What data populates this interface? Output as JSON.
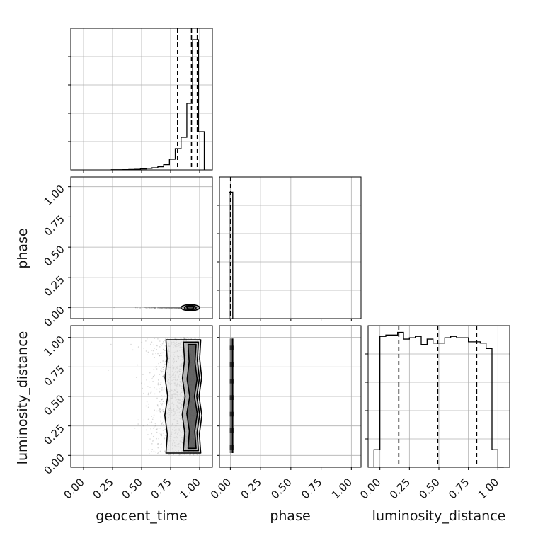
{
  "chart_data": {
    "type": "corner",
    "title": "",
    "parameters": [
      "geocent_time",
      "phase",
      "luminosity_distance"
    ],
    "grid": true,
    "colors": {
      "line": "#000000",
      "grid": "#b0b0b0",
      "scatter": "#7a7a7a"
    },
    "tick_labels": [
      "0.00",
      "0.25",
      "0.50",
      "0.75",
      "1.00"
    ],
    "tick_values": [
      0,
      0.25,
      0.5,
      0.75,
      1.0
    ],
    "axis_ranges": {
      "geocent_time": [
        -0.11,
        1.11
      ],
      "phase": [
        -0.09,
        1.08
      ],
      "luminosity_distance": [
        -0.1,
        1.1
      ]
    },
    "histograms": [
      {
        "parameter": "geocent_time",
        "bin_edges": [
          0.24,
          0.29,
          0.34,
          0.39,
          0.44,
          0.49,
          0.54,
          0.59,
          0.64,
          0.69,
          0.74,
          0.79,
          0.84,
          0.89,
          0.94,
          0.99,
          1.04
        ],
        "counts": [
          1,
          1,
          2,
          3,
          4,
          7,
          11,
          15,
          22,
          37,
          75,
          150,
          230,
          470,
          920,
          270
        ],
        "count_max": 1000,
        "quantiles": [
          0.81,
          0.93,
          0.98
        ]
      },
      {
        "parameter": "phase",
        "bin_edges": [
          -0.01,
          0.005,
          0.02
        ],
        "counts": [
          1.0,
          1.0
        ],
        "count_max": 1.12,
        "quantiles": [
          0.002
        ]
      },
      {
        "parameter": "luminosity_distance",
        "bin_edges": [
          -0.05,
          0.0,
          0.05,
          0.1,
          0.15,
          0.2,
          0.25,
          0.3,
          0.35,
          0.4,
          0.45,
          0.5,
          0.55,
          0.6,
          0.65,
          0.7,
          0.75,
          0.8,
          0.85,
          0.9,
          0.95,
          1.0,
          1.05
        ],
        "counts": [
          0.13,
          0.97,
          0.98,
          0.98,
          1.0,
          0.95,
          0.96,
          0.97,
          0.91,
          0.95,
          0.92,
          0.92,
          0.96,
          0.97,
          0.96,
          0.96,
          0.93,
          0.93,
          0.92,
          0.88,
          0.13,
          0.0
        ],
        "count_max": 1.05,
        "quantiles": [
          0.16,
          0.49,
          0.82
        ]
      }
    ],
    "scatter_panels": [
      {
        "x": "geocent_time",
        "y": "phase",
        "x_range_points": [
          0.15,
          0.99
        ],
        "y_center": 0.0,
        "contour_center": [
          0.92,
          0.0
        ],
        "contour_x_halfwidths": [
          0.08,
          0.05,
          0.03
        ],
        "contour_y_halfwidths": [
          0.025,
          0.018,
          0.011
        ]
      },
      {
        "x": "geocent_time",
        "y": "luminosity_distance",
        "x_range_points": [
          0.15,
          1.0
        ],
        "y_range_points": [
          0.0,
          1.0
        ],
        "contour_x_left": [
          0.71,
          0.86,
          0.9
        ],
        "contour_x_right": [
          1.01,
          0.99,
          0.97
        ],
        "contour_y_range": [
          0.02,
          0.98
        ]
      },
      {
        "x": "phase",
        "y": "luminosity_distance",
        "x_range_points": [
          -0.005,
          0.03
        ],
        "y_range_points": [
          0.02,
          0.99
        ]
      }
    ]
  }
}
